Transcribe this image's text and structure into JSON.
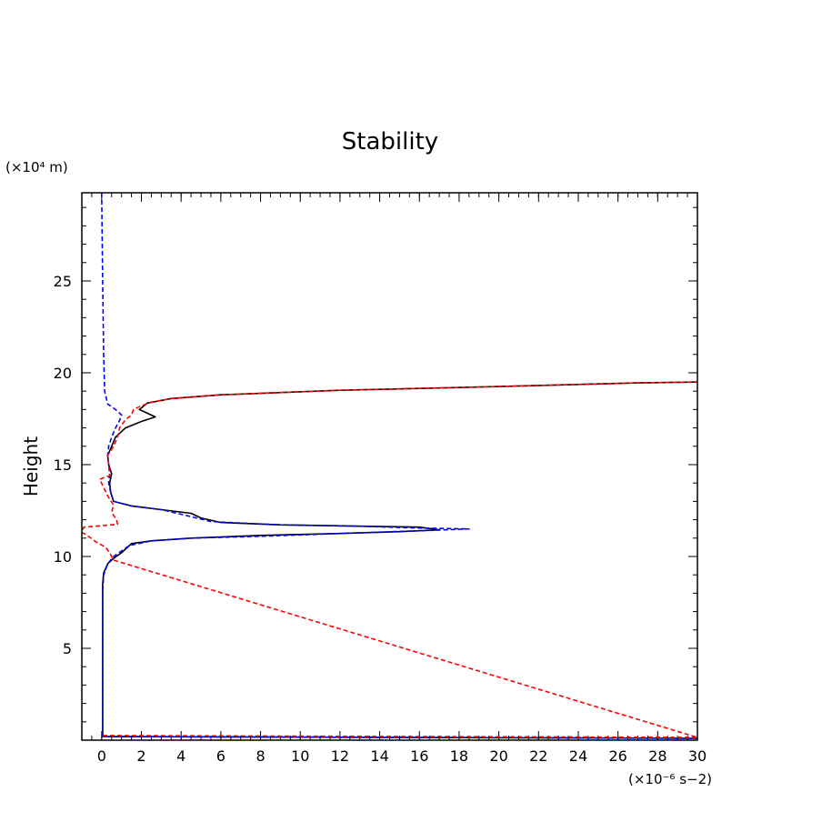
{
  "chart_data": {
    "type": "line",
    "title": "Stability",
    "xlabel": "",
    "ylabel": "Height",
    "x_unit_label": "(×10⁻⁶ s−2)",
    "y_unit_label": "(×10⁴ m)",
    "xlim": [
      -1,
      30
    ],
    "ylim": [
      0,
      29.8
    ],
    "x_ticks": [
      0,
      2,
      4,
      6,
      8,
      10,
      12,
      14,
      16,
      18,
      20,
      22,
      24,
      26,
      28,
      30
    ],
    "y_ticks": [
      5,
      10,
      15,
      20,
      25
    ],
    "x_minor_step": 0.5,
    "y_minor_step": 1,
    "grid": false,
    "legend": "none",
    "series": [
      {
        "color": "#000000",
        "style": "solid",
        "points": [
          [
            0.05,
            0.2
          ],
          [
            30,
            0.1
          ],
          [
            0.05,
            0.2
          ],
          [
            0.05,
            5
          ],
          [
            0.05,
            8.5
          ],
          [
            0.1,
            9.1
          ],
          [
            0.3,
            9.6
          ],
          [
            0.6,
            9.9
          ],
          [
            1.0,
            10.2
          ],
          [
            1.3,
            10.5
          ],
          [
            1.5,
            10.7
          ],
          [
            2.5,
            10.85
          ],
          [
            4.5,
            11.0
          ],
          [
            8.0,
            11.15
          ],
          [
            12.0,
            11.25
          ],
          [
            15.0,
            11.35
          ],
          [
            17.0,
            11.45
          ],
          [
            16.0,
            11.6
          ],
          [
            13.0,
            11.65
          ],
          [
            9.0,
            11.72
          ],
          [
            6.0,
            11.85
          ],
          [
            5.0,
            12.1
          ],
          [
            4.5,
            12.35
          ],
          [
            3.0,
            12.55
          ],
          [
            1.5,
            12.75
          ],
          [
            0.6,
            13.0
          ],
          [
            0.45,
            13.5
          ],
          [
            0.4,
            14.0
          ],
          [
            0.5,
            14.5
          ],
          [
            0.35,
            15.0
          ],
          [
            0.3,
            15.5
          ],
          [
            0.5,
            16.0
          ],
          [
            0.7,
            16.5
          ],
          [
            1.2,
            17.0
          ],
          [
            2.0,
            17.35
          ],
          [
            2.7,
            17.6
          ],
          [
            1.9,
            18.0
          ],
          [
            2.3,
            18.35
          ],
          [
            3.5,
            18.6
          ],
          [
            6.0,
            18.8
          ],
          [
            12.0,
            19.05
          ],
          [
            20.0,
            19.25
          ],
          [
            27.0,
            19.45
          ],
          [
            30.0,
            19.5
          ]
        ]
      },
      {
        "color": "#0000ff",
        "style": "dashed",
        "points": [
          [
            0,
            29.8
          ],
          [
            0.05,
            25
          ],
          [
            0.1,
            21
          ],
          [
            0.15,
            19.0
          ],
          [
            0.3,
            18.3
          ],
          [
            0.7,
            18.0
          ],
          [
            1.0,
            17.7
          ],
          [
            0.9,
            17.4
          ],
          [
            0.7,
            17.0
          ],
          [
            0.5,
            16.5
          ],
          [
            0.35,
            16.0
          ],
          [
            0.3,
            15.5
          ],
          [
            0.35,
            15.0
          ],
          [
            0.4,
            14.5
          ],
          [
            0.35,
            14.0
          ],
          [
            0.45,
            13.5
          ],
          [
            0.6,
            13.0
          ],
          [
            1.5,
            12.75
          ],
          [
            3.0,
            12.55
          ],
          [
            4.0,
            12.3
          ],
          [
            5.5,
            11.9
          ],
          [
            9.0,
            11.72
          ],
          [
            13.0,
            11.65
          ],
          [
            16.0,
            11.55
          ],
          [
            18.5,
            11.5
          ],
          [
            16.0,
            11.4
          ],
          [
            12.0,
            11.25
          ],
          [
            8.0,
            11.1
          ],
          [
            4.5,
            11.0
          ],
          [
            2.5,
            10.85
          ],
          [
            1.4,
            10.6
          ],
          [
            1.0,
            10.3
          ],
          [
            0.6,
            10.0
          ],
          [
            0.3,
            9.6
          ],
          [
            0.1,
            9.0
          ],
          [
            0.05,
            8.0
          ],
          [
            0.05,
            5.0
          ],
          [
            0.05,
            0.2
          ],
          [
            0.05,
            0.2
          ],
          [
            30,
            0.1
          ]
        ]
      },
      {
        "color": "#ff0000",
        "style": "dashed",
        "points": [
          [
            0.05,
            0.25
          ],
          [
            30,
            0.15
          ],
          [
            0.6,
            9.8
          ],
          [
            0.4,
            10.2
          ],
          [
            0.2,
            10.5
          ],
          [
            -0.3,
            10.8
          ],
          [
            -0.8,
            11.2
          ],
          [
            -1,
            11.3
          ],
          [
            -0.9,
            11.6
          ],
          [
            0.3,
            11.7
          ],
          [
            0.8,
            11.75
          ],
          [
            0.75,
            12.0
          ],
          [
            0.5,
            12.4
          ],
          [
            0.6,
            12.8
          ],
          [
            0.3,
            13.3
          ],
          [
            -0.1,
            14.2
          ],
          [
            0.4,
            14.4
          ],
          [
            0.35,
            15.0
          ],
          [
            0.3,
            15.5
          ],
          [
            0.6,
            16.0
          ],
          [
            0.8,
            16.5
          ],
          [
            0.9,
            17.0
          ],
          [
            1.2,
            17.45
          ],
          [
            1.5,
            17.7
          ],
          [
            1.6,
            18.0
          ],
          [
            2.0,
            18.2
          ],
          [
            2.5,
            18.4
          ],
          [
            3.5,
            18.6
          ],
          [
            6.0,
            18.8
          ],
          [
            12.0,
            19.05
          ],
          [
            20.0,
            19.25
          ],
          [
            27.0,
            19.45
          ],
          [
            30.0,
            19.5
          ]
        ]
      }
    ]
  }
}
